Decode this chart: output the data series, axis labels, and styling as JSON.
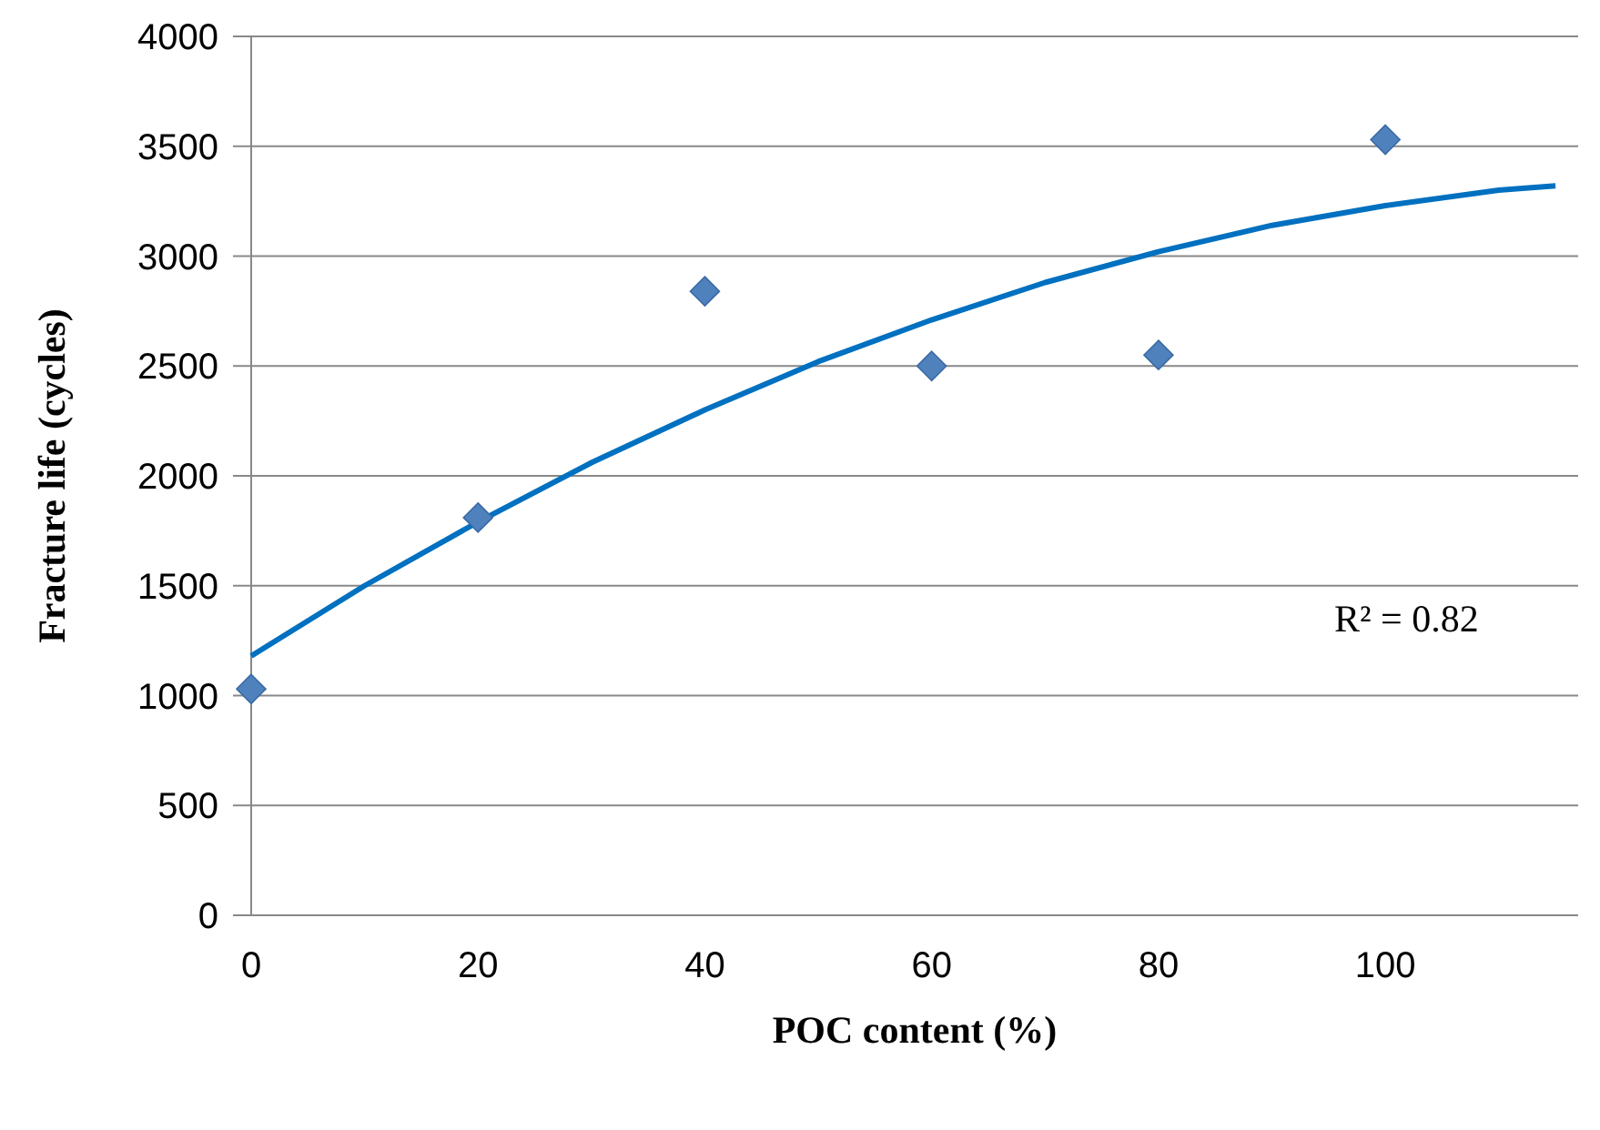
{
  "chart_data": {
    "type": "scatter",
    "xlabel": "POC content (%)",
    "ylabel": "Fracture life (cycles)",
    "xlim": [
      0,
      117
    ],
    "xticks": [
      0,
      20,
      40,
      60,
      80,
      100
    ],
    "ylim": [
      0,
      4000
    ],
    "yticks": [
      0,
      500,
      1000,
      1500,
      2000,
      2500,
      3000,
      3500,
      4000
    ],
    "grid": "y",
    "marker": "diamond",
    "annotations": [
      "R² = 0.82"
    ],
    "series": [
      {
        "color": "#4f81bd",
        "x": [
          0,
          20,
          40,
          60,
          80,
          100
        ],
        "values": [
          1030,
          1810,
          2840,
          2500,
          2550,
          3530
        ]
      },
      {
        "type": "line",
        "color": "#0070c0",
        "marker": "none",
        "x": [
          0,
          10,
          20,
          30,
          40,
          50,
          60,
          70,
          80,
          90,
          100,
          110,
          115
        ],
        "values": [
          1180,
          1500,
          1790,
          2060,
          2300,
          2520,
          2710,
          2880,
          3020,
          3140,
          3230,
          3300,
          3320
        ]
      }
    ]
  }
}
